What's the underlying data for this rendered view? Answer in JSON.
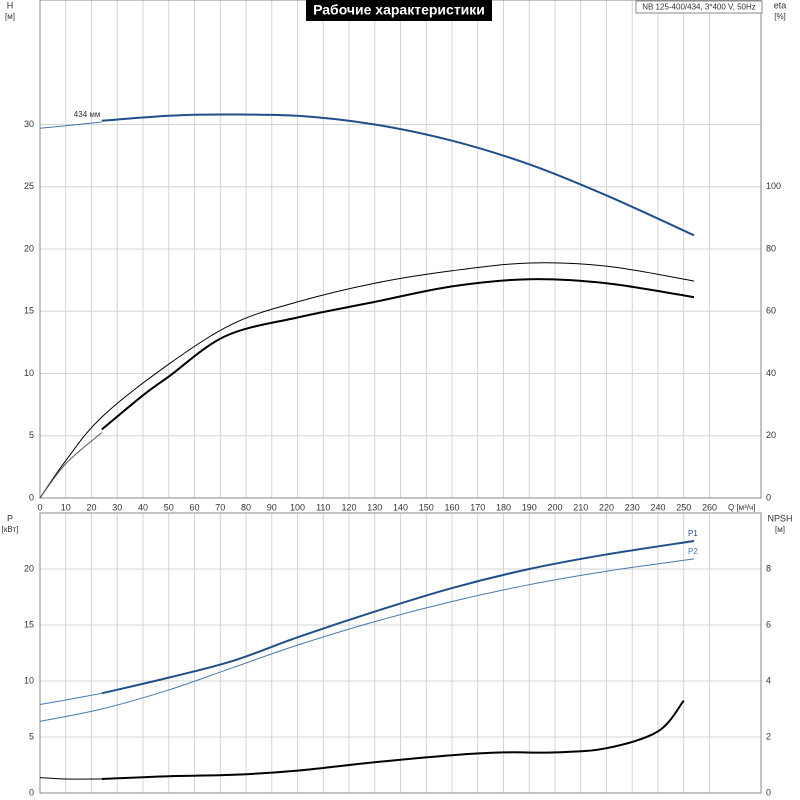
{
  "title": "Рабочие характеристики",
  "pump_label": "NB 125-400/434, 3*400 V, 50Hz",
  "chart_data": [
    {
      "type": "line",
      "y_label": "H",
      "y_unit": "[м]",
      "y2_label": "eta",
      "y2_unit": "[%]",
      "x_label": "Q [м³/ч]",
      "curve_label": "434 мм",
      "xlim": [
        0,
        280
      ],
      "xticks": [
        0,
        10,
        20,
        30,
        40,
        50,
        60,
        70,
        80,
        90,
        100,
        110,
        120,
        130,
        140,
        150,
        160,
        170,
        180,
        190,
        200,
        210,
        220,
        230,
        240,
        250,
        260
      ],
      "ylim": [
        0,
        40
      ],
      "yticks": [
        0,
        5,
        10,
        15,
        20,
        25,
        30
      ],
      "y2lim": [
        0,
        160
      ],
      "y2ticks": [
        0,
        20,
        40,
        60,
        80,
        100
      ],
      "grid": true,
      "series": [
        {
          "color": "#4a78ab",
          "width": 1,
          "x": [
            0,
            10,
            24
          ],
          "values": [
            29.7,
            29.9,
            30.2
          ]
        },
        {
          "color": "#1f4e8c",
          "width": 2,
          "x": [
            24,
            50,
            70,
            100,
            130,
            160,
            190,
            220,
            254
          ],
          "values": [
            30.3,
            30.7,
            30.8,
            30.7,
            30.0,
            28.7,
            26.8,
            24.3,
            21.1
          ]
        },
        {
          "color": "#000000",
          "width": 1,
          "axis": "y2",
          "x": [
            0,
            10,
            24,
            50,
            75,
            100,
            130,
            160,
            190,
            220,
            254
          ],
          "values": [
            0,
            12,
            26,
            43,
            56,
            63,
            69,
            73,
            75.5,
            74.5,
            69.7
          ]
        },
        {
          "color": "#555555",
          "width": 1,
          "axis": "y2",
          "x": [
            0,
            10,
            24
          ],
          "values": [
            0,
            11,
            21
          ]
        },
        {
          "color": "#000000",
          "width": 2,
          "axis": "y2",
          "x": [
            24,
            40,
            50,
            72,
            100,
            130,
            160,
            190,
            220,
            254
          ],
          "values": [
            22,
            33,
            39,
            52,
            58,
            63,
            68,
            70.3,
            69,
            64.5
          ]
        }
      ]
    },
    {
      "type": "line",
      "y_label": "P",
      "y_unit": "[кВт]",
      "y2_label": "NPSH",
      "y2_unit": "[м]",
      "xlim": [
        0,
        280
      ],
      "ylim": [
        0,
        25
      ],
      "yticks": [
        0,
        5,
        10,
        15,
        20
      ],
      "y2lim": [
        0,
        10
      ],
      "y2ticks": [
        0,
        2,
        4,
        6,
        8
      ],
      "grid": true,
      "series": [
        {
          "color": "#4a78ab",
          "width": 1,
          "x": [
            0,
            10,
            24
          ],
          "values": [
            7.9,
            8.3,
            8.9
          ]
        },
        {
          "name": "P1",
          "color": "#1f4e8c",
          "width": 2,
          "x": [
            24,
            50,
            75,
            100,
            130,
            160,
            190,
            220,
            254
          ],
          "values": [
            8.9,
            10.3,
            11.8,
            13.9,
            16.2,
            18.3,
            20.0,
            21.3,
            22.5
          ]
        },
        {
          "name": "P2",
          "color": "#4a78ab",
          "width": 1,
          "x": [
            0,
            24,
            50,
            75,
            100,
            130,
            160,
            190,
            220,
            254
          ],
          "values": [
            6.4,
            7.5,
            9.2,
            11.2,
            13.2,
            15.3,
            17.1,
            18.6,
            19.8,
            20.9
          ]
        },
        {
          "color": "#000000",
          "width": 1,
          "axis": "y2",
          "x": [
            0,
            10,
            24
          ],
          "values": [
            0.55,
            0.5,
            0.5
          ]
        },
        {
          "color": "#000000",
          "width": 2,
          "axis": "y2",
          "x": [
            24,
            50,
            75,
            100,
            130,
            160,
            180,
            200,
            220,
            240,
            250
          ],
          "values": [
            0.5,
            0.6,
            0.65,
            0.8,
            1.1,
            1.35,
            1.45,
            1.45,
            1.6,
            2.2,
            3.3
          ]
        }
      ]
    }
  ]
}
